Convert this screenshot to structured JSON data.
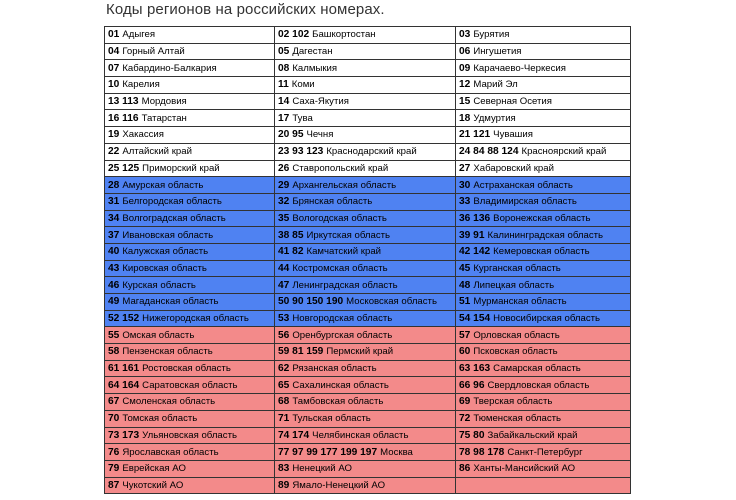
{
  "title": "Коды регионов на российских номерах.",
  "colors": {
    "white": "#ffffff",
    "blue": "#4f82f2",
    "red": "#f38a8a"
  },
  "rows": [
    {
      "band": "white",
      "cells": [
        {
          "code": "01",
          "name": "Адыгея"
        },
        {
          "code": "02 102",
          "name": "Башкортостан"
        },
        {
          "code": "03",
          "name": "Бурятия"
        }
      ]
    },
    {
      "band": "white",
      "cells": [
        {
          "code": "04",
          "name": "Горный Алтай"
        },
        {
          "code": "05",
          "name": "Дагестан"
        },
        {
          "code": "06",
          "name": "Ингушетия"
        }
      ]
    },
    {
      "band": "white",
      "cells": [
        {
          "code": "07",
          "name": "Кабардино-Балкария"
        },
        {
          "code": "08",
          "name": "Калмыкия"
        },
        {
          "code": "09",
          "name": "Карачаево-Черкесия"
        }
      ]
    },
    {
      "band": "white",
      "cells": [
        {
          "code": "10",
          "name": "Карелия"
        },
        {
          "code": "11",
          "name": "Коми"
        },
        {
          "code": "12",
          "name": "Марий Эл"
        }
      ]
    },
    {
      "band": "white",
      "cells": [
        {
          "code": "13 113",
          "name": "Мордовия"
        },
        {
          "code": "14",
          "name": "Саха-Якутия"
        },
        {
          "code": "15",
          "name": "Северная Осетия"
        }
      ]
    },
    {
      "band": "white",
      "cells": [
        {
          "code": "16 116",
          "name": "Татарстан"
        },
        {
          "code": "17",
          "name": "Тува"
        },
        {
          "code": "18",
          "name": "Удмуртия"
        }
      ]
    },
    {
      "band": "white",
      "cells": [
        {
          "code": "19",
          "name": "Хакассия"
        },
        {
          "code": "20 95",
          "name": "Чечня"
        },
        {
          "code": "21 121",
          "name": "Чувашия"
        }
      ]
    },
    {
      "band": "white",
      "cells": [
        {
          "code": "22",
          "name": "Алтайский край"
        },
        {
          "code": "23 93 123",
          "name": "Краснодарский край"
        },
        {
          "code": "24 84 88 124",
          "name": "Красноярский край"
        }
      ]
    },
    {
      "band": "white",
      "cells": [
        {
          "code": "25 125",
          "name": "Приморский край"
        },
        {
          "code": "26",
          "name": "Ставропольский край"
        },
        {
          "code": "27",
          "name": "Хабаровский край"
        }
      ]
    },
    {
      "band": "blue",
      "cells": [
        {
          "code": "28",
          "name": "Амурская область"
        },
        {
          "code": "29",
          "name": "Архангельская область"
        },
        {
          "code": "30",
          "name": "Астраханская область"
        }
      ]
    },
    {
      "band": "blue",
      "cells": [
        {
          "code": "31",
          "name": "Белгородская область"
        },
        {
          "code": "32",
          "name": "Брянская область"
        },
        {
          "code": "33",
          "name": "Владимирская область"
        }
      ]
    },
    {
      "band": "blue",
      "cells": [
        {
          "code": "34",
          "name": "Волгоградская область"
        },
        {
          "code": "35",
          "name": "Вологодская область"
        },
        {
          "code": "36 136",
          "name": "Воронежская область"
        }
      ]
    },
    {
      "band": "blue",
      "cells": [
        {
          "code": "37",
          "name": "Ивановская область"
        },
        {
          "code": "38 85",
          "name": "Иркутская область"
        },
        {
          "code": "39 91",
          "name": "Калининградская область"
        }
      ]
    },
    {
      "band": "blue",
      "cells": [
        {
          "code": "40",
          "name": "Калужская область"
        },
        {
          "code": "41 82",
          "name": "Камчатский край"
        },
        {
          "code": "42 142",
          "name": "Кемеровская область"
        }
      ]
    },
    {
      "band": "blue",
      "cells": [
        {
          "code": "43",
          "name": "Кировская область"
        },
        {
          "code": "44",
          "name": "Костромская область"
        },
        {
          "code": "45",
          "name": "Курганская область"
        }
      ]
    },
    {
      "band": "blue",
      "cells": [
        {
          "code": "46",
          "name": "Курская область"
        },
        {
          "code": "47",
          "name": "Ленинградская область"
        },
        {
          "code": "48",
          "name": "Липецкая область"
        }
      ]
    },
    {
      "band": "blue",
      "cells": [
        {
          "code": "49",
          "name": "Магаданская область"
        },
        {
          "code": "50 90 150 190",
          "name": "Московская область"
        },
        {
          "code": "51",
          "name": "Мурманская область"
        }
      ]
    },
    {
      "band": "blue",
      "cells": [
        {
          "code": "52  152",
          "name": "Нижегородская область"
        },
        {
          "code": "53",
          "name": "Новгородская область"
        },
        {
          "code": "54 154",
          "name": "Новосибирская область"
        }
      ]
    },
    {
      "band": "red",
      "cells": [
        {
          "code": "55",
          "name": "Омская область"
        },
        {
          "code": "56",
          "name": "Оренбургская область"
        },
        {
          "code": "57",
          "name": "Орловская область"
        }
      ]
    },
    {
      "band": "red",
      "cells": [
        {
          "code": "58",
          "name": "Пензенская область"
        },
        {
          "code": "59 81 159",
          "name": "Пермский край"
        },
        {
          "code": "60",
          "name": "Псковская область"
        }
      ]
    },
    {
      "band": "red",
      "cells": [
        {
          "code": "61 161",
          "name": "Ростовская область"
        },
        {
          "code": "62",
          "name": "Рязанская область"
        },
        {
          "code": "63 163",
          "name": "Самарская область"
        }
      ]
    },
    {
      "band": "red",
      "cells": [
        {
          "code": "64 164",
          "name": "Саратовская область"
        },
        {
          "code": "65",
          "name": "Сахалинская область"
        },
        {
          "code": "66 96",
          "name": "Свердловская область"
        }
      ]
    },
    {
      "band": "red",
      "cells": [
        {
          "code": "67",
          "name": "Смоленская область"
        },
        {
          "code": "68",
          "name": "Тамбовская область"
        },
        {
          "code": "69",
          "name": "Тверская область"
        }
      ]
    },
    {
      "band": "red",
      "cells": [
        {
          "code": "70",
          "name": "Томская область"
        },
        {
          "code": "71",
          "name": "Тульская область"
        },
        {
          "code": "72",
          "name": "Тюменская область"
        }
      ]
    },
    {
      "band": "red",
      "cells": [
        {
          "code": "73 173",
          "name": "Ульяновская область"
        },
        {
          "code": "74 174",
          "name": "Челябинская область"
        },
        {
          "code": "75 80",
          "name": "Забайкальский край"
        }
      ]
    },
    {
      "band": "red",
      "cells": [
        {
          "code": "76",
          "name": "Ярославская область"
        },
        {
          "code": "77 97 99 177 199 197",
          "name": "Москва"
        },
        {
          "code": "78 98 178",
          "name": "Санкт-Петербург"
        }
      ]
    },
    {
      "band": "red",
      "cells": [
        {
          "code": "79",
          "name": "Еврейская АО"
        },
        {
          "code": "83",
          "name": "Ненецкий АО"
        },
        {
          "code": "86",
          "name": "Ханты-Мансийский АО"
        }
      ]
    },
    {
      "band": "red",
      "cells": [
        {
          "code": "87",
          "name": "Чукотский АО"
        },
        {
          "code": "89",
          "name": "Ямало-Ненецкий АО"
        },
        {
          "code": "",
          "name": ""
        }
      ]
    }
  ]
}
